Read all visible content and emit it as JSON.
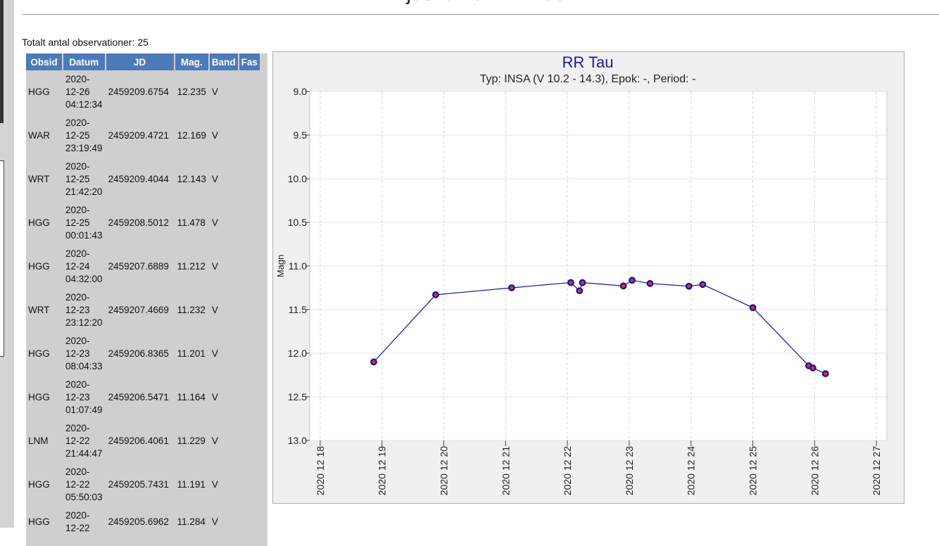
{
  "header": {
    "title": "Ljuskurva: RR Tau",
    "count": "Totalt antal observationer: 25"
  },
  "table": {
    "header": [
      "Obsid",
      "Datum",
      "JD",
      "Mag.",
      "Band",
      "Fas"
    ],
    "rows": [
      {
        "obsid": "HGG",
        "datum": [
          "2020-",
          "12-26",
          "04:12:34"
        ],
        "jd": "2459209.6754",
        "mag": "12.235",
        "band": "V"
      },
      {
        "obsid": "WAR",
        "datum": [
          "2020-",
          "12-25",
          "23:19:49"
        ],
        "jd": "2459209.4721",
        "mag": "12.169",
        "band": "V"
      },
      {
        "obsid": "WRT",
        "datum": [
          "2020-",
          "12-25",
          "21:42:20"
        ],
        "jd": "2459209.4044",
        "mag": "12.143",
        "band": "V"
      },
      {
        "obsid": "HGG",
        "datum": [
          "2020-",
          "12-25",
          "00:01:43"
        ],
        "jd": "2459208.5012",
        "mag": "11.478",
        "band": "V"
      },
      {
        "obsid": "HGG",
        "datum": [
          "2020-",
          "12-24",
          "04:32:00"
        ],
        "jd": "2459207.6889",
        "mag": "11.212",
        "band": "V"
      },
      {
        "obsid": "WRT",
        "datum": [
          "2020-",
          "12-23",
          "23:12:20"
        ],
        "jd": "2459207.4669",
        "mag": "11.232",
        "band": "V"
      },
      {
        "obsid": "HGG",
        "datum": [
          "2020-",
          "12-23",
          "08:04:33"
        ],
        "jd": "2459206.8365",
        "mag": "11.201",
        "band": "V"
      },
      {
        "obsid": "HGG",
        "datum": [
          "2020-",
          "12-23",
          "01:07:49"
        ],
        "jd": "2459206.5471",
        "mag": "11.164",
        "band": "V"
      },
      {
        "obsid": "LNM",
        "datum": [
          "2020-",
          "12-22",
          "21:44:47"
        ],
        "jd": "2459206.4061",
        "mag": "11.229",
        "band": "V"
      },
      {
        "obsid": "HGG",
        "datum": [
          "2020-",
          "12-22",
          "05:50:03"
        ],
        "jd": "2459205.7431",
        "mag": "11.191",
        "band": "V"
      },
      {
        "obsid": "HGG",
        "datum": [
          "2020-",
          "12-22"
        ],
        "jd": "2459205.6962",
        "mag": "11.284",
        "band": "V"
      }
    ]
  },
  "chart_data": {
    "type": "scatter",
    "title": "RR Tau",
    "subtitle": "Typ: INSA (V 10.2 - 14.3), Epok: -, Period: -",
    "y_label": "Magn",
    "x": [
      2459202.366,
      2459203.368,
      2459204.598,
      2459205.555,
      2459205.6962,
      2459205.7431,
      2459206.4061,
      2459206.5471,
      2459206.8365,
      2459207.4669,
      2459207.6889,
      2459208.5012,
      2459209.4044,
      2459209.4721,
      2459209.6754
    ],
    "values": [
      12.1,
      11.33,
      11.25,
      11.19,
      11.284,
      11.191,
      11.229,
      11.164,
      11.201,
      11.232,
      11.212,
      11.478,
      12.143,
      12.169,
      12.235
    ],
    "color": "#0a14a8",
    "point_fill": "#e0302a",
    "line_color": "#0a1a9a",
    "xlim": [
      2459201.33,
      2459210.67
    ],
    "xticks": [
      {
        "value": 2459201.5,
        "label": "2020 12 18"
      },
      {
        "value": 2459202.5,
        "label": "2020 12 19"
      },
      {
        "value": 2459203.5,
        "label": "2020 12 20"
      },
      {
        "value": 2459204.5,
        "label": "2020 12 21"
      },
      {
        "value": 2459205.5,
        "label": "2020 12 22"
      },
      {
        "value": 2459206.5,
        "label": "2020 12 23"
      },
      {
        "value": 2459207.5,
        "label": "2020 12 24"
      },
      {
        "value": 2459208.5,
        "label": "2020 12 25"
      },
      {
        "value": 2459209.5,
        "label": "2020 12 26"
      },
      {
        "value": 2459210.5,
        "label": "2020 12 27"
      }
    ],
    "ylim": [
      13,
      9
    ],
    "yticks": [
      {
        "value": 9,
        "label": "9.0"
      },
      {
        "value": 9.5,
        "label": "9.5"
      },
      {
        "value": 10,
        "label": "10.0"
      },
      {
        "value": 10.5,
        "label": "10.5"
      },
      {
        "value": 11,
        "label": "11.0"
      },
      {
        "value": 11.5,
        "label": "11.5"
      },
      {
        "value": 12,
        "label": "12.0"
      },
      {
        "value": 12.5,
        "label": "12.5"
      },
      {
        "value": 13,
        "label": "13.0"
      }
    ],
    "grid": true
  }
}
